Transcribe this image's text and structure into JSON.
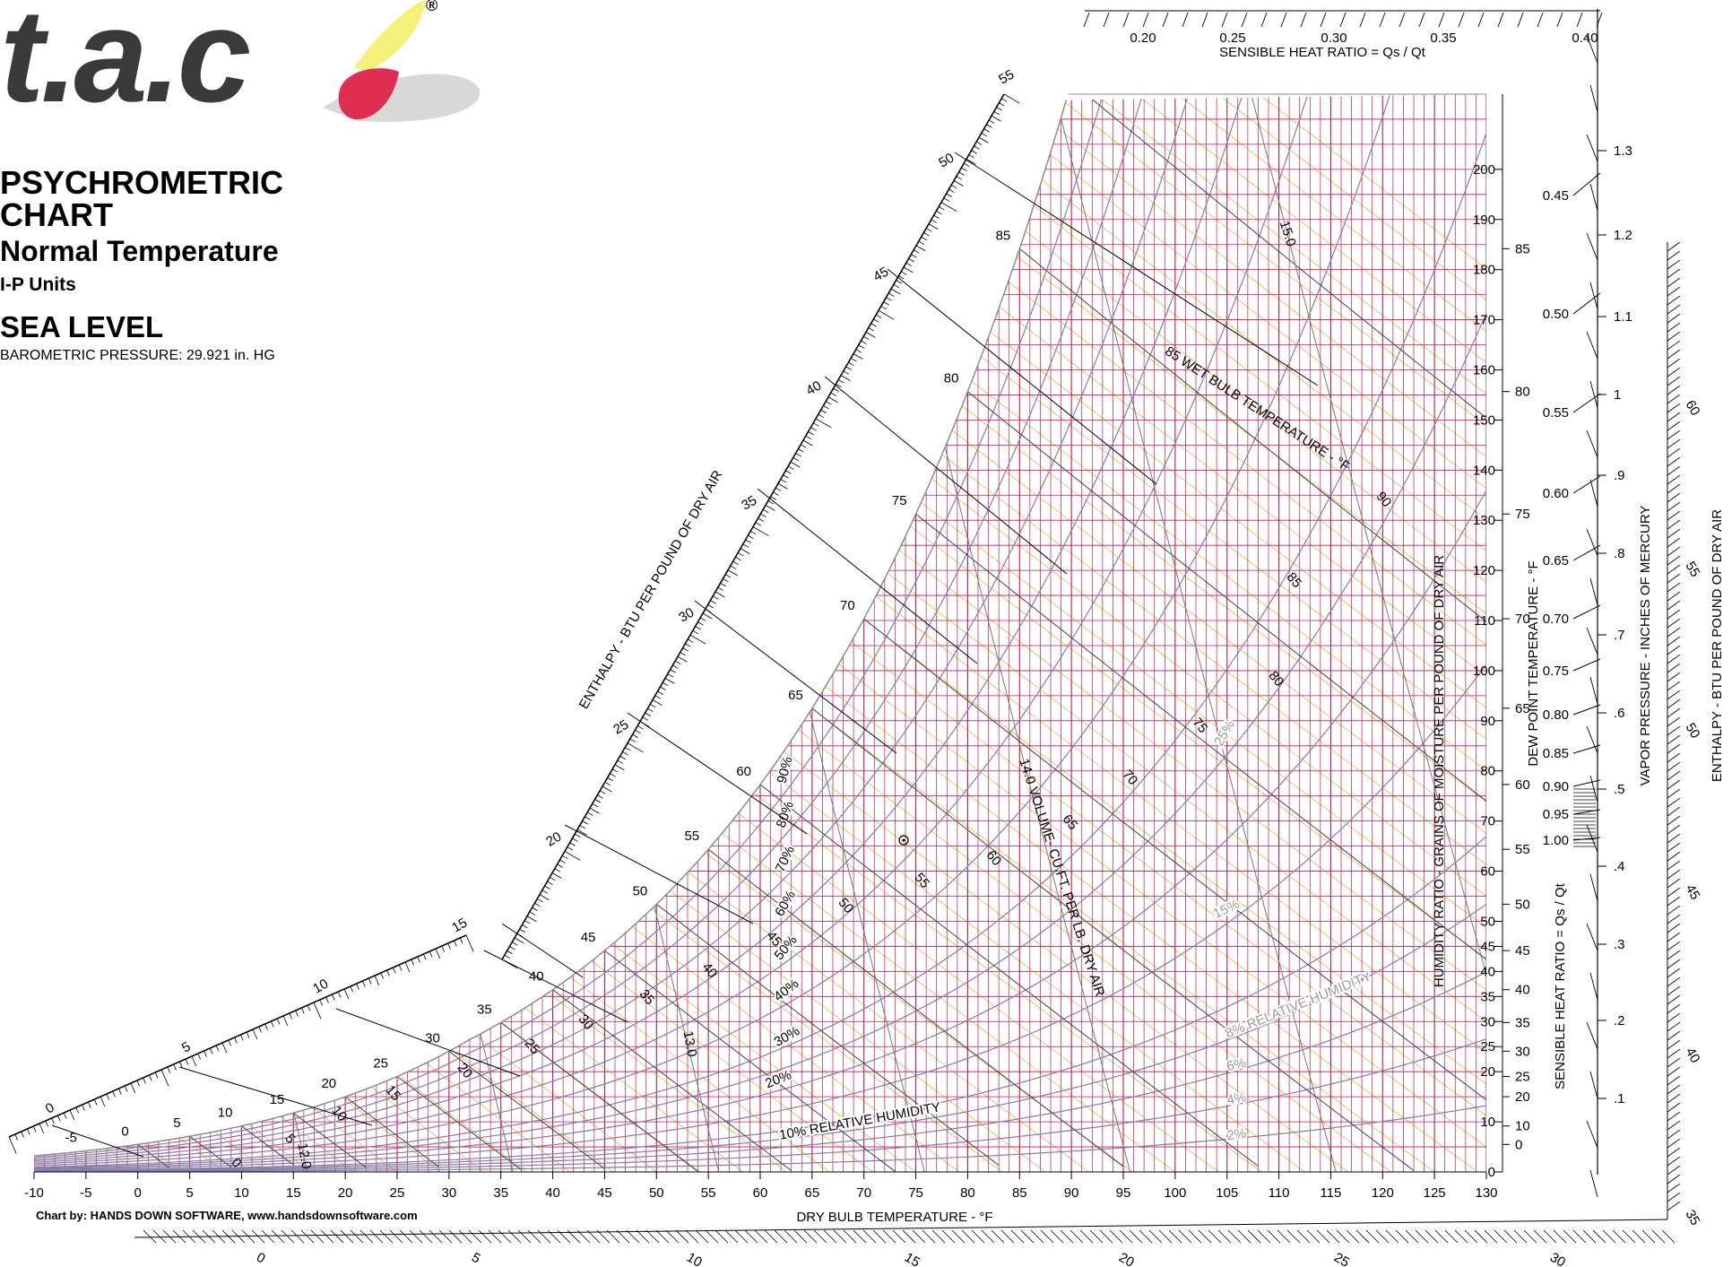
{
  "header": {
    "logo_text": "t.a.c",
    "registered": "®",
    "title": "PSYCHROMETRIC CHART",
    "subtitle": "Normal Temperature",
    "units": "I-P Units",
    "altitude": "SEA LEVEL",
    "pressure": "BAROMETRIC PRESSURE: 29.921 in. HG"
  },
  "footer": {
    "credit": "Chart by: HANDS DOWN SOFTWARE, www.handsdownsoftware.com"
  },
  "colors": {
    "rh_lines": "#b5486e",
    "humidity_grid": "#c0175a",
    "enthalpy_grid": "#f0b030",
    "wet_bulb": "#444444",
    "volume": "#777777",
    "frame": "#000000"
  },
  "chart_data": {
    "type": "psychrometric",
    "xlabel": "DRY BULB TEMPERATURE - °F",
    "ylabel": "HUMIDITY RATIO - GRAINS OF MOISTURE PER POUND OF DRY AIR",
    "x_ticks": [
      -10,
      -5,
      0,
      5,
      10,
      15,
      20,
      25,
      30,
      35,
      40,
      45,
      50,
      55,
      60,
      65,
      70,
      75,
      80,
      85,
      90,
      95,
      100,
      105,
      110,
      115,
      120,
      125,
      130
    ],
    "xlim": [
      -10,
      130
    ],
    "y_ticks": [
      0,
      10,
      20,
      25,
      30,
      35,
      40,
      45,
      50,
      60,
      70,
      80,
      90,
      100,
      110,
      120,
      130,
      140,
      150,
      160,
      170,
      180,
      190,
      200
    ],
    "ylim": [
      0,
      215
    ],
    "dew_point": {
      "label": "DEW POINT TEMPERATURE - °F",
      "ticks": [
        0,
        10,
        20,
        25,
        30,
        35,
        40,
        45,
        50,
        55,
        60,
        65,
        70,
        75,
        80,
        85
      ]
    },
    "saturation_curve_labels": [
      -5,
      0,
      5,
      10,
      15,
      20,
      25,
      30,
      35,
      40,
      45,
      50,
      55,
      60,
      65,
      70,
      75,
      80,
      85
    ],
    "relative_humidity": {
      "series_labels": [
        "2%",
        "4%",
        "6%",
        "8% RELATIVE HUMIDITY",
        "10% RELATIVE HUMIDITY",
        "15%",
        "20%",
        "25%",
        "30%",
        "40%",
        "50%",
        "60%",
        "70%",
        "80%",
        "90%"
      ],
      "values": [
        2,
        4,
        6,
        8,
        10,
        15,
        20,
        25,
        30,
        40,
        50,
        60,
        70,
        80,
        90,
        100
      ]
    },
    "wet_bulb": {
      "label": "85 WET BULB TEMPERATURE - °F",
      "values": [
        0,
        5,
        10,
        15,
        20,
        25,
        30,
        35,
        40,
        45,
        50,
        55,
        60,
        65,
        70,
        75,
        80,
        85,
        90
      ]
    },
    "volume": {
      "label": "14.0 VOLUME- CU.FT. PER LB. DRY AIR",
      "values": [
        12.0,
        13.0,
        14.0,
        15.0
      ]
    },
    "enthalpy_scale": {
      "label": "ENTHALPY - BTU PER POUND OF DRY AIR",
      "major_ticks": [
        0,
        5,
        10,
        15,
        20,
        25,
        30,
        35,
        40,
        45,
        50,
        55,
        60
      ]
    },
    "enthalpy_right": {
      "label": "ENTHALPY - BTU PER POUND OF DRY AIR",
      "ticks": [
        35,
        40,
        45,
        50,
        55,
        60
      ]
    },
    "enthalpy_bottom": {
      "ticks": [
        0,
        5,
        10,
        15,
        20,
        25,
        30
      ]
    },
    "shr_top": {
      "label": "SENSIBLE HEAT RATIO = Qs / Qt",
      "ticks": [
        "0.20",
        "0.25",
        "0.30",
        "0.35",
        "0.40"
      ]
    },
    "shr_right": {
      "label": "SENSIBLE HEAT RATIO = Qs / Qt",
      "ticks": [
        "0.45",
        "0.50",
        "0.55",
        "0.60",
        "0.65",
        "0.70",
        "0.75",
        "0.80",
        "0.85",
        "0.90",
        "0.95",
        "1.00"
      ]
    },
    "vapor_pressure": {
      "label": "VAPOR PRESSURE - INCHES OF MERCURY",
      "ticks": [
        "1.3",
        "1.2",
        "1.1",
        "1",
        ".9",
        ".8",
        ".7",
        ".6",
        ".5",
        ".4",
        ".3",
        ".2",
        ".1"
      ]
    }
  }
}
